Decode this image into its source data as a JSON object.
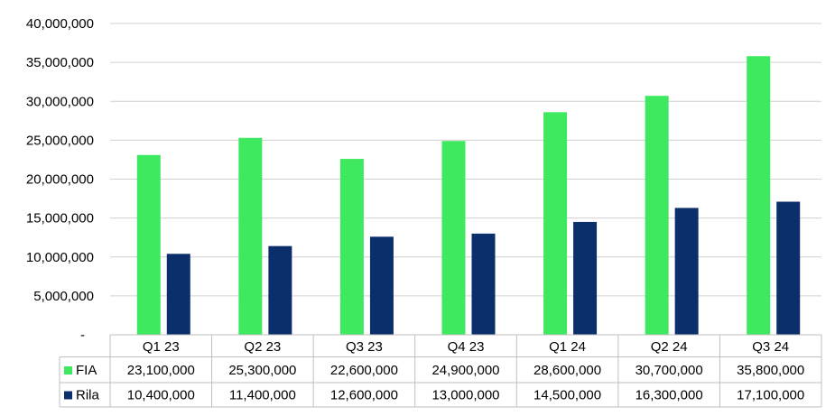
{
  "chart_data": {
    "type": "bar",
    "categories": [
      "Q1 23",
      "Q2 23",
      "Q3 23",
      "Q4 23",
      "Q1 24",
      "Q2 24",
      "Q3 24"
    ],
    "series": [
      {
        "name": "FIA",
        "color": "#3EE85F",
        "values": [
          23100000,
          25300000,
          22600000,
          24900000,
          28600000,
          30700000,
          35800000
        ],
        "labels": [
          "23,100,000",
          "25,300,000",
          "22,600,000",
          "24,900,000",
          "28,600,000",
          "30,700,000",
          "35,800,000"
        ]
      },
      {
        "name": "Rila",
        "color": "#0B2F6B",
        "values": [
          10400000,
          11400000,
          12600000,
          13000000,
          14500000,
          16300000,
          17100000
        ],
        "labels": [
          "10,400,000",
          "11,400,000",
          "12,600,000",
          "13,000,000",
          "14,500,000",
          "16,300,000",
          "17,100,000"
        ]
      }
    ],
    "ylim": [
      0,
      40000000
    ],
    "yticks": [
      0,
      5000000,
      10000000,
      15000000,
      20000000,
      25000000,
      30000000,
      35000000,
      40000000
    ],
    "ytick_labels": [
      "-",
      "5,000,000",
      "10,000,000",
      "15,000,000",
      "20,000,000",
      "25,000,000",
      "30,000,000",
      "35,000,000",
      "40,000,000"
    ],
    "grid": true,
    "legend": "data-table",
    "data_table": true
  }
}
